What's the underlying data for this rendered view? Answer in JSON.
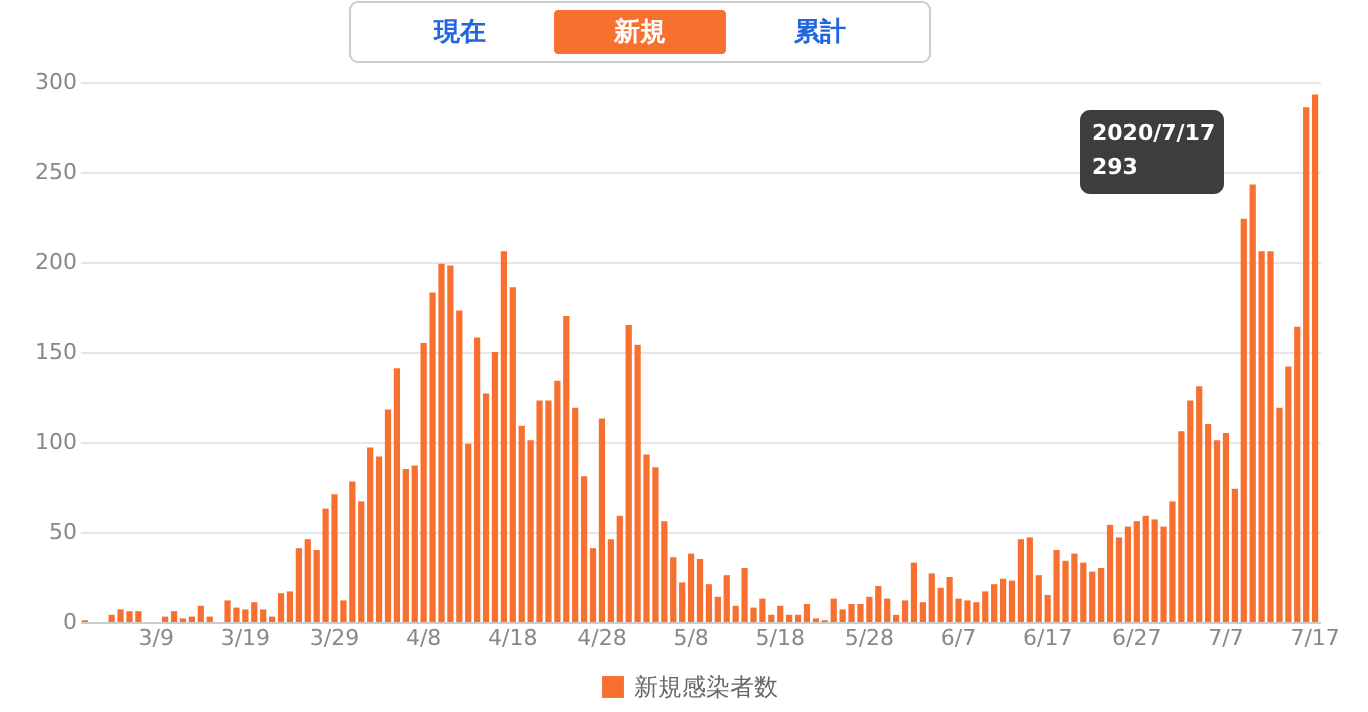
{
  "chart_data": {
    "type": "bar",
    "categories": [
      null,
      null,
      null,
      null,
      null,
      null,
      null,
      null,
      "3/9",
      null,
      null,
      null,
      null,
      null,
      null,
      null,
      null,
      null,
      "3/19",
      null,
      null,
      null,
      null,
      null,
      null,
      null,
      null,
      null,
      "3/29",
      null,
      null,
      null,
      null,
      null,
      null,
      null,
      null,
      null,
      "4/8",
      null,
      null,
      null,
      null,
      null,
      null,
      null,
      null,
      null,
      "4/18",
      null,
      null,
      null,
      null,
      null,
      null,
      null,
      null,
      null,
      "4/28",
      null,
      null,
      null,
      null,
      null,
      null,
      null,
      null,
      null,
      "5/8",
      null,
      null,
      null,
      null,
      null,
      null,
      null,
      null,
      null,
      "5/18",
      null,
      null,
      null,
      null,
      null,
      null,
      null,
      null,
      null,
      "5/28",
      null,
      null,
      null,
      null,
      null,
      null,
      null,
      null,
      null,
      "6/7",
      null,
      null,
      null,
      null,
      null,
      null,
      null,
      null,
      null,
      "6/17",
      null,
      null,
      null,
      null,
      null,
      null,
      null,
      null,
      null,
      "6/27",
      null,
      null,
      null,
      null,
      null,
      null,
      null,
      null,
      null,
      "7/7",
      null,
      null,
      null,
      null,
      null,
      null,
      null,
      null,
      null,
      "7/17"
    ],
    "series": [
      {
        "name": "新規感染者数",
        "color": "#f8702f",
        "values": [
          1,
          0,
          0,
          4,
          7,
          6,
          6,
          0,
          0,
          3,
          6,
          2,
          3,
          9,
          3,
          0,
          12,
          8,
          7,
          11,
          7,
          3,
          16,
          17,
          41,
          46,
          40,
          63,
          71,
          12,
          78,
          67,
          97,
          92,
          118,
          141,
          85,
          87,
          155,
          183,
          199,
          198,
          173,
          99,
          158,
          127,
          150,
          206,
          186,
          109,
          101,
          123,
          123,
          134,
          170,
          119,
          81,
          41,
          113,
          46,
          59,
          165,
          154,
          93,
          86,
          56,
          36,
          22,
          38,
          35,
          21,
          14,
          26,
          9,
          30,
          8,
          13,
          4,
          9,
          4,
          4,
          10,
          2,
          1,
          13,
          7,
          10,
          10,
          14,
          20,
          13,
          4,
          12,
          33,
          11,
          27,
          19,
          25,
          13,
          12,
          11,
          17,
          21,
          24,
          23,
          46,
          47,
          26,
          15,
          40,
          34,
          38,
          33,
          28,
          30,
          54,
          47,
          53,
          56,
          59,
          57,
          53,
          67,
          106,
          123,
          131,
          110,
          101,
          105,
          74,
          224,
          243,
          206,
          206,
          119,
          142,
          164,
          286,
          293
        ]
      }
    ],
    "ylim": [
      0,
      300
    ],
    "yticks": [
      0,
      50,
      100,
      150,
      200,
      250,
      300
    ],
    "grid": "y",
    "legend": "bottom",
    "annotations": [
      "現在",
      "新規",
      "累計",
      "2020/7/17",
      "293"
    ]
  }
}
